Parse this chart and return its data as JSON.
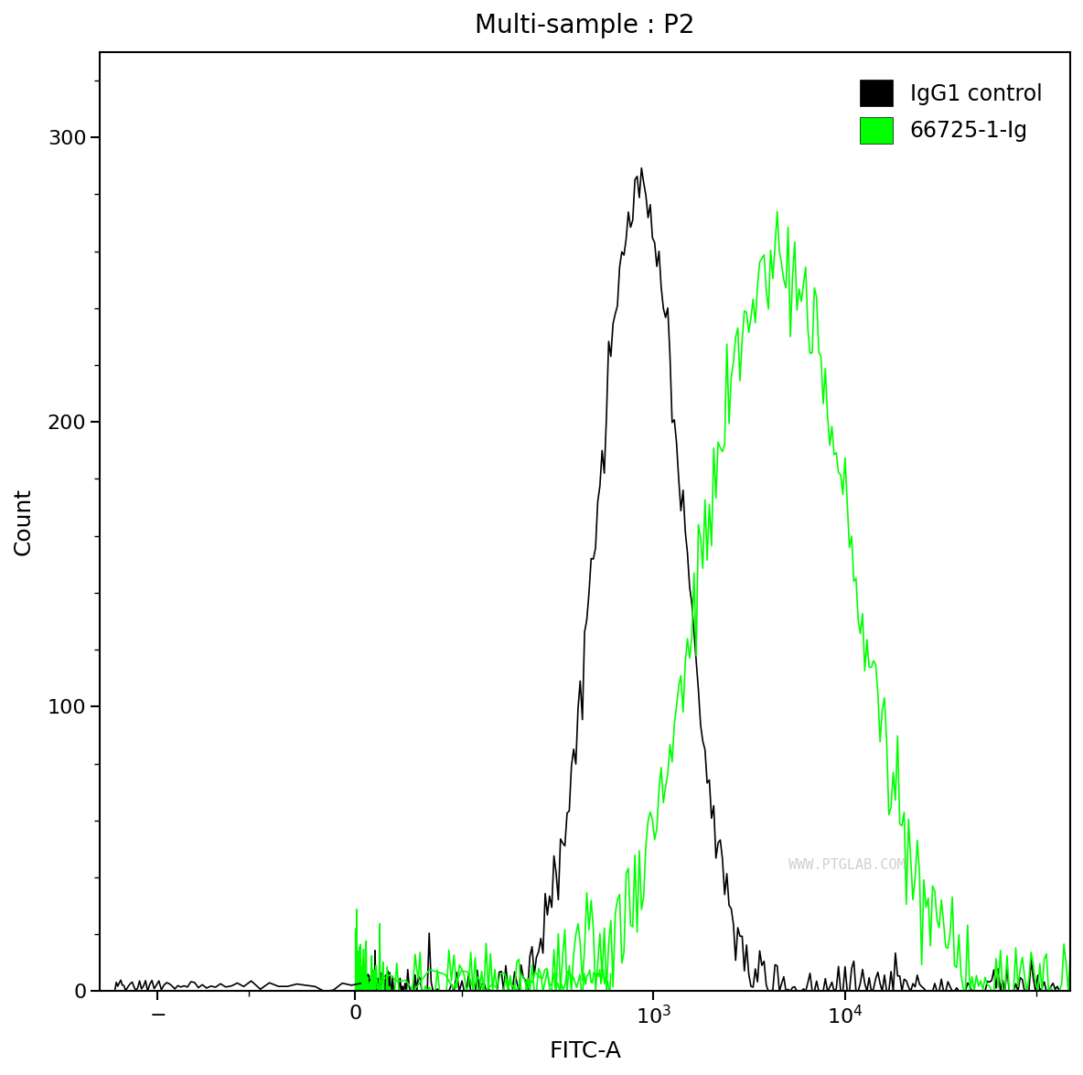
{
  "title": "Multi-sample : P2",
  "xlabel": "FITC-A",
  "ylabel": "Count",
  "ylim": [
    0,
    330
  ],
  "yticks": [
    0,
    100,
    200,
    300
  ],
  "background_color": "#ffffff",
  "plot_bg_color": "#ffffff",
  "curve1_color": "#000000",
  "curve2_color": "#00ff00",
  "legend_labels": [
    "IgG1 control",
    "66725-1-Ig"
  ],
  "legend_colors": [
    "#000000",
    "#00ff00"
  ],
  "watermark": "WWW.PTGLAB.COM",
  "watermark_color": "#c8c8c8",
  "title_fontsize": 20,
  "label_fontsize": 18,
  "tick_fontsize": 16,
  "legend_fontsize": 17,
  "curve1_peak_log": 2.93,
  "curve1_peak_y": 280,
  "curve1_spread": 0.22,
  "curve2_peak_log": 3.65,
  "curve2_peak_y": 258,
  "curve2_spread": 0.38,
  "linthresh": 100,
  "linscale": 0.5,
  "xlim_left": -600,
  "xlim_right": 150000
}
